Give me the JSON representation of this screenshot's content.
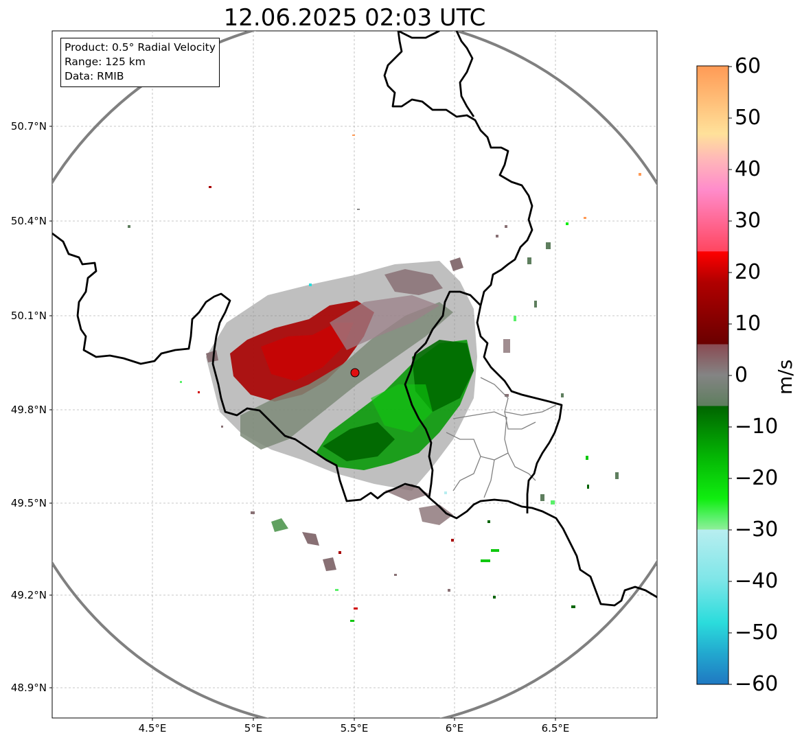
{
  "title": "12.06.2025 02:03 UTC",
  "info_box": {
    "product": "Product: 0.5° Radial Velocity",
    "range": "Range: 125 km",
    "source": "Data: RMIB"
  },
  "axes": {
    "lat_labels": [
      "50.7°N",
      "50.4°N",
      "50.1°N",
      "49.8°N",
      "49.5°N",
      "49.2°N",
      "48.9°N"
    ],
    "lon_labels": [
      "4.5°E",
      "5°E",
      "5.5°E",
      "6°E",
      "6.5°E"
    ]
  },
  "colorbar": {
    "label": "m/s",
    "ticks": [
      "60",
      "50",
      "40",
      "30",
      "20",
      "10",
      "0",
      "−10",
      "−20",
      "−30",
      "−40",
      "−50",
      "−60"
    ],
    "min": -60,
    "max": 60
  },
  "radar_site": {
    "marker_color": "#e01010"
  }
}
